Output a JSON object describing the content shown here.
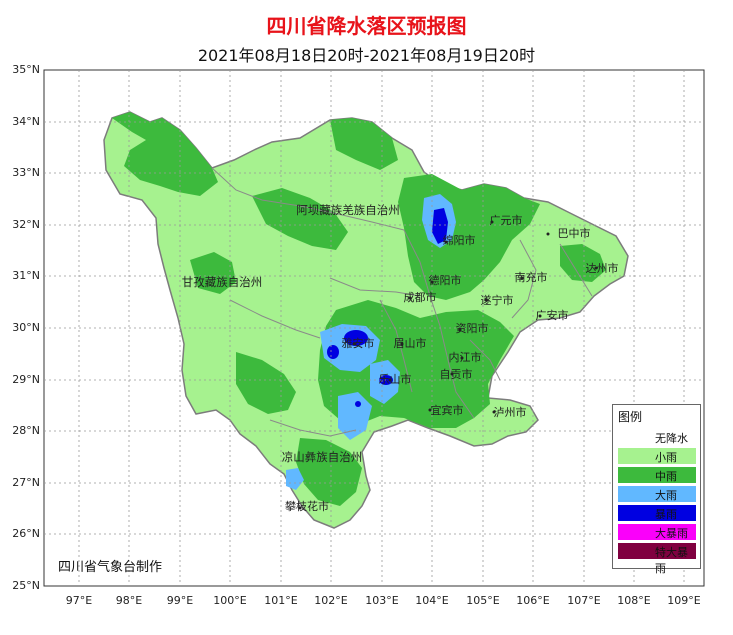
{
  "header": {
    "title": "四川省降水落区预报图",
    "subtitle": "2021年08月18日20时-2021年08月19日20时"
  },
  "axes": {
    "lat_labels": [
      "35°N",
      "34°N",
      "33°N",
      "32°N",
      "31°N",
      "30°N",
      "29°N",
      "28°N",
      "27°N",
      "26°N",
      "25°N"
    ],
    "lon_labels": [
      "97°E",
      "98°E",
      "99°E",
      "100°E",
      "101°E",
      "102°E",
      "103°E",
      "104°E",
      "105°E",
      "106°E",
      "107°E",
      "108°E",
      "109°E"
    ]
  },
  "regions": {
    "aba": "阿坝藏族羌族自治州",
    "ganzi": "甘孜藏族自治州",
    "liangshan": "凉山彝族自治州"
  },
  "cities": {
    "guangyuan": "广元市",
    "bazhong": "巴中市",
    "mianyang": "绵阳市",
    "dazhou": "达州市",
    "deyang": "德阳市",
    "nanchong": "南充市",
    "chengdu": "成都市",
    "suining": "遂宁市",
    "guangan": "广安市",
    "ziyang": "资阳市",
    "yaan": "雅安市",
    "meishan": "眉山市",
    "neijiang": "内江市",
    "leshan": "乐山市",
    "zigong": "自贡市",
    "yibin": "宜宾市",
    "luzhou": "泸州市",
    "panzhihua": "攀枝花市"
  },
  "credit": "四川省气象台制作",
  "legend": {
    "title": "图例",
    "items": [
      {
        "label": "无降水",
        "color": "#ffffff"
      },
      {
        "label": "小雨",
        "color": "#a6f28f"
      },
      {
        "label": "中雨",
        "color": "#3dba3d"
      },
      {
        "label": "大雨",
        "color": "#61b8ff"
      },
      {
        "label": "暴雨",
        "color": "#0000e1"
      },
      {
        "label": "大暴雨",
        "color": "#fa00fa"
      },
      {
        "label": "特大暴雨",
        "color": "#800040"
      }
    ]
  }
}
